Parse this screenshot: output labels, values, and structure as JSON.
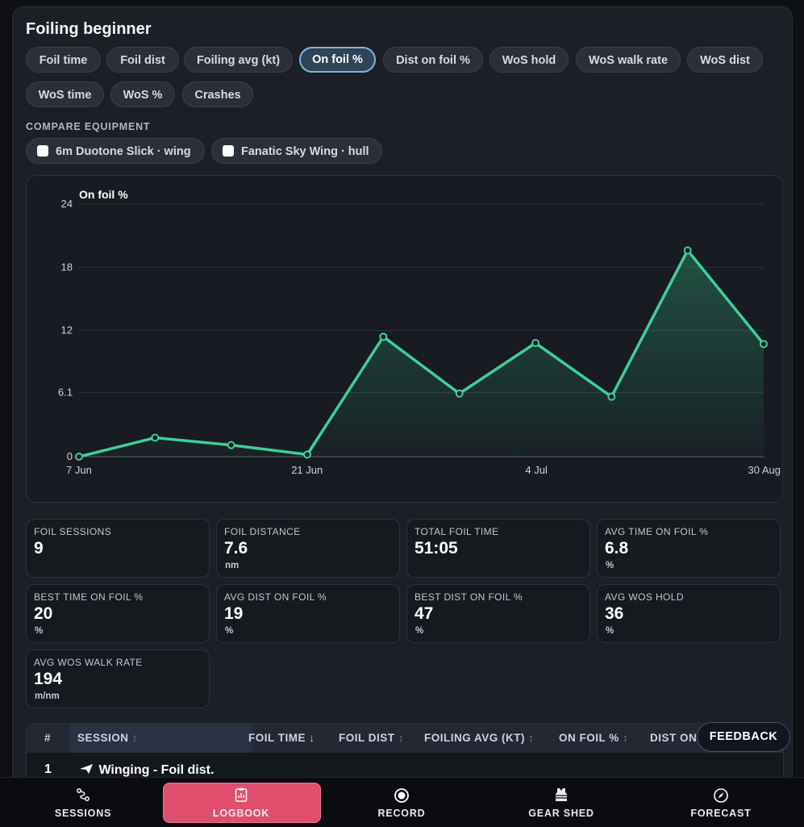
{
  "title": "Foiling beginner",
  "metrics": [
    {
      "label": "Foil time",
      "active": false
    },
    {
      "label": "Foil dist",
      "active": false
    },
    {
      "label": "Foiling avg (kt)",
      "active": false
    },
    {
      "label": "On foil %",
      "active": true
    },
    {
      "label": "Dist on foil %",
      "active": false
    },
    {
      "label": "WoS hold",
      "active": false
    },
    {
      "label": "WoS walk rate",
      "active": false
    },
    {
      "label": "WoS dist",
      "active": false
    },
    {
      "label": "WoS time",
      "active": false
    },
    {
      "label": "WoS %",
      "active": false
    },
    {
      "label": "Crashes",
      "active": false
    }
  ],
  "compare": {
    "label": "COMPARE EQUIPMENT",
    "options": [
      {
        "label": "6m Duotone Slick · wing",
        "checked": false
      },
      {
        "label": "Fanatic Sky Wing · hull",
        "checked": false
      }
    ]
  },
  "chart_data": {
    "type": "area",
    "title": "On foil %",
    "xlabel": "",
    "ylabel": "",
    "ylim": [
      0,
      24
    ],
    "y_ticks": [
      "0",
      "6.1",
      "12",
      "18",
      "24"
    ],
    "x_ticks": [
      "7 Jun",
      "21 Jun",
      "4 Jul",
      "30 Aug"
    ],
    "grid": true,
    "color": "#3ecf97",
    "series": [
      {
        "name": "",
        "values": [
          0,
          1.8,
          1.1,
          0.2,
          11.4,
          6.0,
          10.8,
          5.7,
          19.6,
          10.7
        ]
      }
    ]
  },
  "stats": [
    {
      "label": "FOIL SESSIONS",
      "value": "9",
      "unit": ""
    },
    {
      "label": "FOIL DISTANCE",
      "value": "7.6",
      "unit": "nm"
    },
    {
      "label": "TOTAL FOIL TIME",
      "value": "51:05",
      "unit": ""
    },
    {
      "label": "AVG TIME ON FOIL %",
      "value": "6.8",
      "unit": "%"
    },
    {
      "label": "BEST TIME ON FOIL %",
      "value": "20",
      "unit": "%"
    },
    {
      "label": "AVG DIST ON FOIL %",
      "value": "19",
      "unit": "%"
    },
    {
      "label": "BEST DIST ON FOIL %",
      "value": "47",
      "unit": "%"
    },
    {
      "label": "AVG WOS HOLD",
      "value": "36",
      "unit": "%"
    },
    {
      "label": "AVG WOS WALK RATE",
      "value": "194",
      "unit": "m/nm"
    }
  ],
  "table": {
    "columns": [
      {
        "label": "#",
        "arrow": ""
      },
      {
        "label": "SESSION",
        "arrow": "↕"
      },
      {
        "label": "FOIL TIME",
        "arrow": "↓"
      },
      {
        "label": "FOIL DIST",
        "arrow": "↕"
      },
      {
        "label": "FOILING AVG (KT)",
        "arrow": "↕"
      },
      {
        "label": "ON FOIL %",
        "arrow": "↕"
      },
      {
        "label": "DIST ON",
        "arrow": ""
      }
    ],
    "rows": [
      {
        "num": "1",
        "session": "Winging - Foil dist."
      }
    ]
  },
  "feedback_label": "FEEDBACK",
  "nav": [
    {
      "label": "SESSIONS",
      "icon": "route-icon",
      "active": false
    },
    {
      "label": "LOGBOOK",
      "icon": "logbook-icon",
      "active": true
    },
    {
      "label": "RECORD",
      "icon": "record-icon",
      "active": false
    },
    {
      "label": "GEAR SHED",
      "icon": "vest-icon",
      "active": false
    },
    {
      "label": "FORECAST",
      "icon": "compass-icon",
      "active": false
    }
  ]
}
